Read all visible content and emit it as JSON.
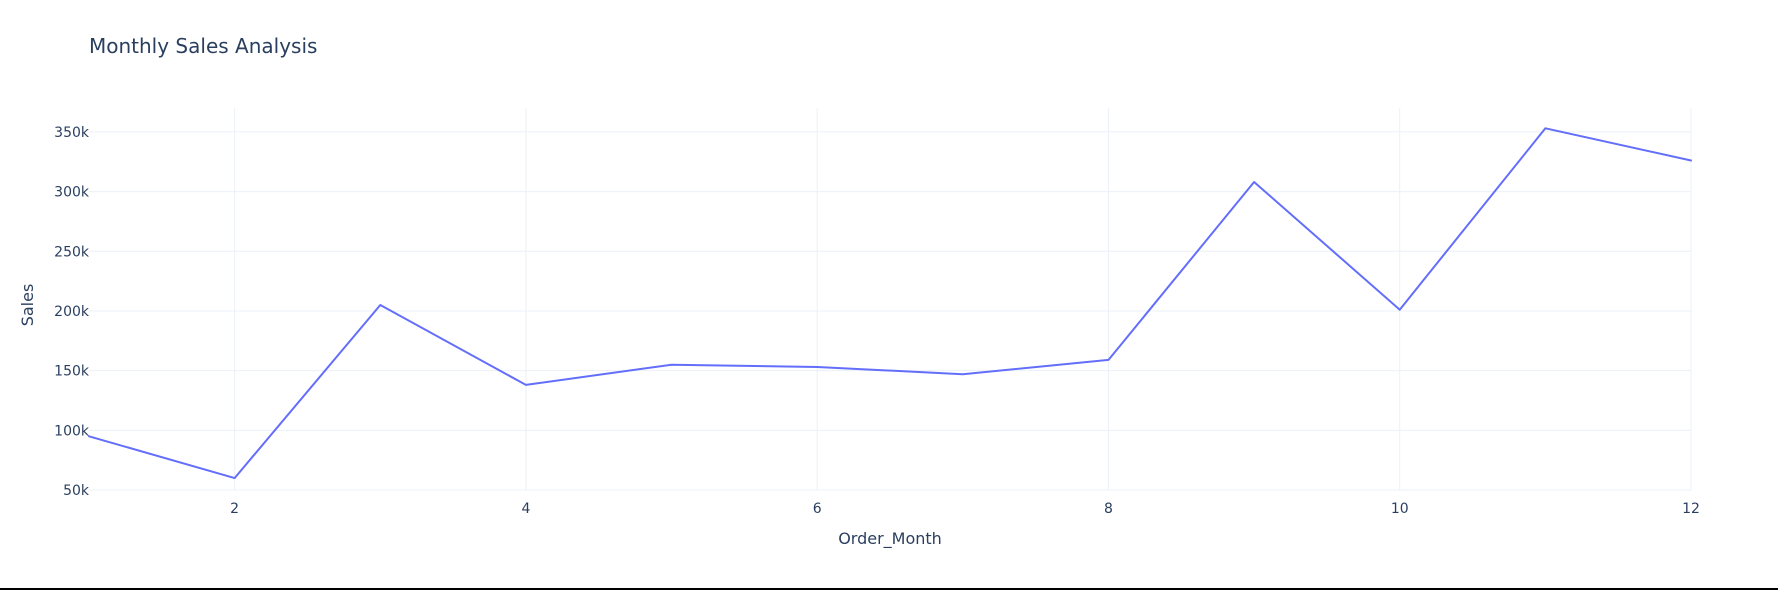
{
  "chart_data": {
    "type": "line",
    "title": "Monthly Sales Analysis",
    "xlabel": "Order_Month",
    "ylabel": "Sales",
    "xlim": [
      1,
      12
    ],
    "ylim": [
      50000,
      370000
    ],
    "x_ticks": [
      2,
      4,
      6,
      8,
      10,
      12
    ],
    "x_tick_labels": [
      "2",
      "4",
      "6",
      "8",
      "10",
      "12"
    ],
    "y_ticks": [
      50000,
      100000,
      150000,
      200000,
      250000,
      300000,
      350000
    ],
    "y_tick_labels": [
      "50k",
      "100k",
      "150k",
      "200k",
      "250k",
      "300k",
      "350k"
    ],
    "grid": true,
    "legend": "none",
    "series": [
      {
        "color": "#636efa",
        "x": [
          1,
          2,
          3,
          4,
          5,
          6,
          7,
          8,
          9,
          10,
          11,
          12
        ],
        "values": [
          95000,
          60000,
          205000,
          138000,
          155000,
          153000,
          147000,
          159000,
          308000,
          201000,
          353000,
          326000
        ]
      }
    ]
  }
}
